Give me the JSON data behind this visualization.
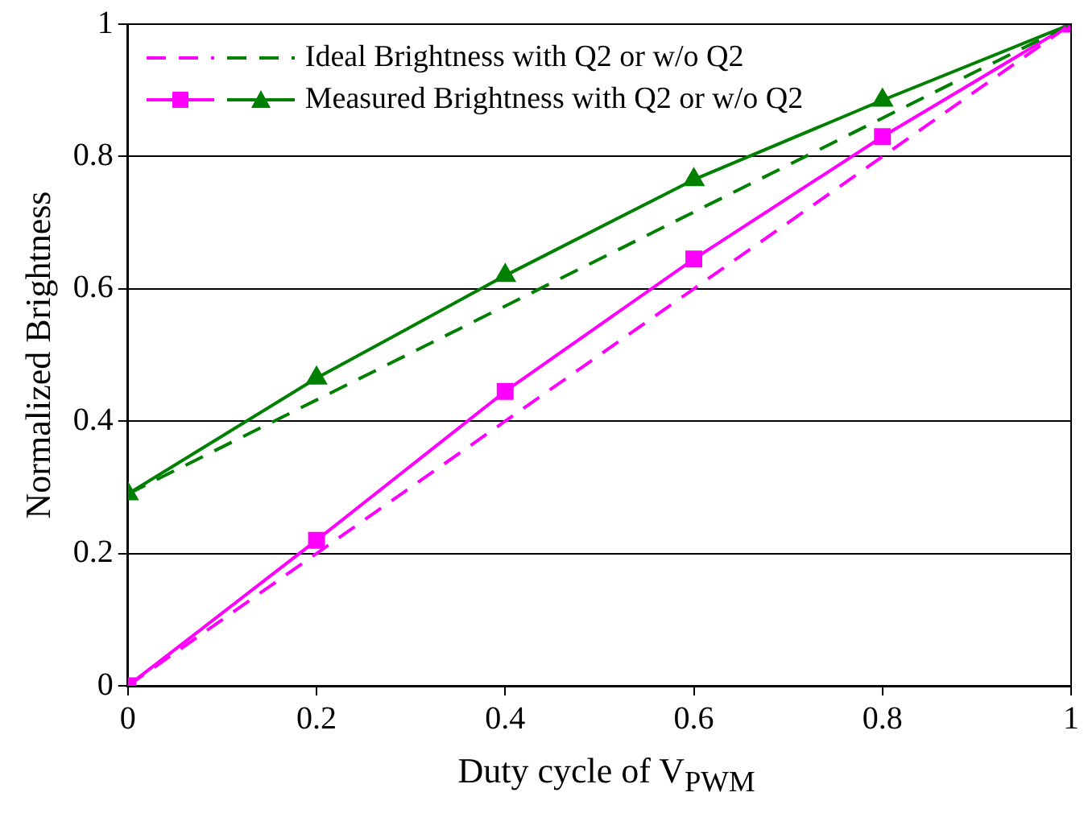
{
  "chart_data": {
    "type": "line",
    "xlabel": "Duty cycle of V$_{PWM}$",
    "ylabel": "Normalized Brightness",
    "xlim": [
      0,
      1
    ],
    "xticks": [
      0,
      0.2,
      0.4,
      0.6,
      0.8,
      1
    ],
    "ylim": [
      0,
      1
    ],
    "yticks": [
      0,
      0.2,
      0.4,
      0.6,
      0.8,
      1
    ],
    "grid": "y",
    "legend": "top left",
    "x": [
      0,
      0.2,
      0.4,
      0.6,
      0.8,
      1
    ],
    "series": [
      {
        "color": "#ff00ff",
        "values": [
          0,
          0.2,
          0.4,
          0.6,
          0.8,
          1
        ],
        "line_style": "dashed",
        "marker": "none"
      },
      {
        "name": "Ideal Brightness with Q2 or w/o Q2",
        "color": "#008000",
        "values": [
          0.29,
          0.432,
          0.574,
          0.716,
          0.858,
          1
        ],
        "line_style": "dashed",
        "marker": "none"
      },
      {
        "color": "#ff00ff",
        "values": [
          0,
          0.22,
          0.445,
          0.645,
          0.83,
          1
        ],
        "line_style": "solid",
        "marker": "square"
      },
      {
        "name": "Measured Brightness with Q2 or w/o Q2",
        "color": "#008000",
        "values": [
          0.29,
          0.465,
          0.62,
          0.765,
          0.885,
          1
        ],
        "line_style": "solid",
        "marker": "triangle"
      }
    ]
  }
}
